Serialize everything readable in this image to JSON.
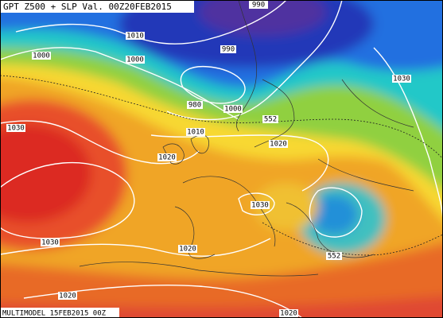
{
  "title": "GPT Z500 + SLP Val. 00Z20FEB2015",
  "footer": "MULTIMODEL 15FEB2015 00Z",
  "contour_labels": [
    "990",
    "1010",
    "1000",
    "1000",
    "990",
    "980",
    "1000",
    "1010",
    "552",
    "1020",
    "1030",
    "1030",
    "1020",
    "1030",
    "1030",
    "1020",
    "552",
    "1020",
    "1020"
  ]
}
